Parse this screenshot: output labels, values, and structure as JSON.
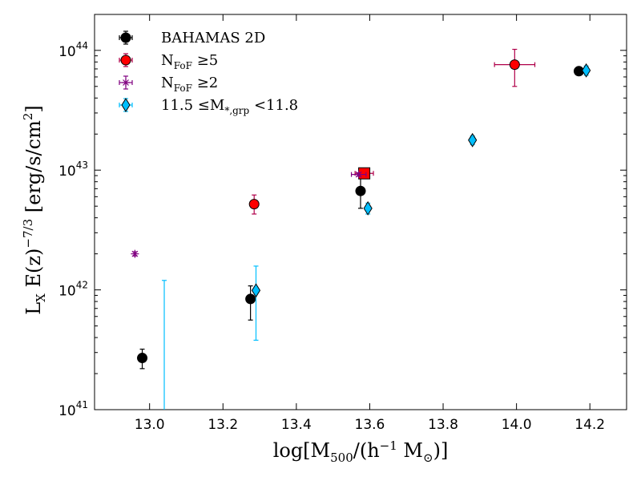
{
  "chart_data": {
    "type": "scatter",
    "title": "",
    "xlabel": "log[M500/(h^-1 M_sun)]",
    "ylabel": "L_X E(z)^-7/3 [erg/s/cm^2]",
    "xlim": [
      12.85,
      14.3
    ],
    "ylim_log10": [
      41,
      44.3
    ],
    "xscale": "linear",
    "yscale": "log",
    "grid": false,
    "legend_placement": "top-left",
    "x_ticks": [
      13.0,
      13.2,
      13.4,
      13.6,
      13.8,
      14.0,
      14.2
    ],
    "x_tick_labels": [
      "13.0",
      "13.2",
      "13.4",
      "13.6",
      "13.8",
      "14.0",
      "14.2"
    ],
    "y_ticks_log10": [
      41,
      42,
      43,
      44
    ],
    "y_tick_labels": [
      "10",
      "10",
      "10",
      "10"
    ],
    "y_tick_exponents": [
      "41",
      "42",
      "43",
      "44"
    ],
    "series": [
      {
        "name": "BAHAMAS 2D",
        "marker": "circle",
        "color": "#000000",
        "points": [
          {
            "x": 12.98,
            "y": 2.7e+41,
            "ylo": 2.2e+41,
            "yhi": 3.2e+41
          },
          {
            "x": 13.275,
            "y": 8.4e+41,
            "ylo": 5.6e+41,
            "yhi": 1.08e+42
          },
          {
            "x": 13.575,
            "y": 6.7e+42,
            "ylo": 4.8e+42,
            "yhi": 8.8e+42
          },
          {
            "x": 14.17,
            "y": 6.7e+43,
            "ylo": 6.3e+43,
            "yhi": 7.1e+43
          }
        ]
      },
      {
        "name": "N_FoF >= 5",
        "marker": "circle",
        "color": "#ff0000",
        "points": [
          {
            "x": 13.285,
            "y": 5.2e+42,
            "ylo": 4.3e+42,
            "yhi": 6.2e+42
          },
          {
            "x": 13.585,
            "y": 9.4e+42,
            "ylo": 8.8e+42,
            "yhi": 1e+43,
            "xerr": 0.025,
            "square": true
          },
          {
            "x": 13.995,
            "y": 7.6e+43,
            "ylo": 5e+43,
            "yhi": 1.02e+44,
            "xerr": 0.055
          }
        ]
      },
      {
        "name": "N_FoF >= 2",
        "marker": "star",
        "color": "#800080",
        "points": [
          {
            "x": 12.96,
            "y": 2e+42,
            "ylo": 1.92e+42,
            "yhi": 2.08e+42
          },
          {
            "x": 13.57,
            "y": 9.2e+42,
            "ylo": 8.9e+42,
            "yhi": 9.5e+42,
            "xerr": 0.02
          }
        ]
      },
      {
        "name": "11.5 <= M_*,grp < 11.8",
        "marker": "diamond",
        "color": "#00bfff",
        "points": [
          {
            "x": 13.04,
            "y": 1e+41,
            "ylo": 1e+41,
            "yhi": 1.2e+42,
            "marker_hidden": true
          },
          {
            "x": 13.29,
            "y": 9.9e+41,
            "ylo": 3.8e+41,
            "yhi": 1.58e+42
          },
          {
            "x": 13.595,
            "y": 4.8e+42,
            "ylo": 4.3e+42,
            "yhi": 5.3e+42
          },
          {
            "x": 13.88,
            "y": 1.78e+43,
            "ylo": 1.63e+43,
            "yhi": 1.93e+43
          },
          {
            "x": 14.19,
            "y": 6.8e+43,
            "ylo": 6.2e+43,
            "yhi": 7.4e+43
          }
        ]
      }
    ]
  },
  "legend": {
    "entries": [
      {
        "text": "BAHAMAS 2D",
        "series": 0
      },
      {
        "text": "N",
        "sub": "FoF",
        "rest": " ≥5",
        "series": 1
      },
      {
        "text": "N",
        "sub": "FoF",
        "rest": " ≥2",
        "series": 2
      },
      {
        "text": "11.5 ≤M",
        "sub": "*,grp",
        "rest": " <11.8",
        "series": 3
      }
    ]
  },
  "axis_labels": {
    "x_main": "log[M",
    "x_sub": "500",
    "x_mid": "/(h",
    "x_sup": "−1",
    "x_mid2": " M",
    "x_sub2": "⊙",
    "x_end": ")]",
    "y_main": "L",
    "y_sub": "X",
    "y_mid": " E(z)",
    "y_sup": "−7/3",
    "y_end": " [erg/s/cm",
    "y_sup2": "2",
    "y_close": "]"
  }
}
